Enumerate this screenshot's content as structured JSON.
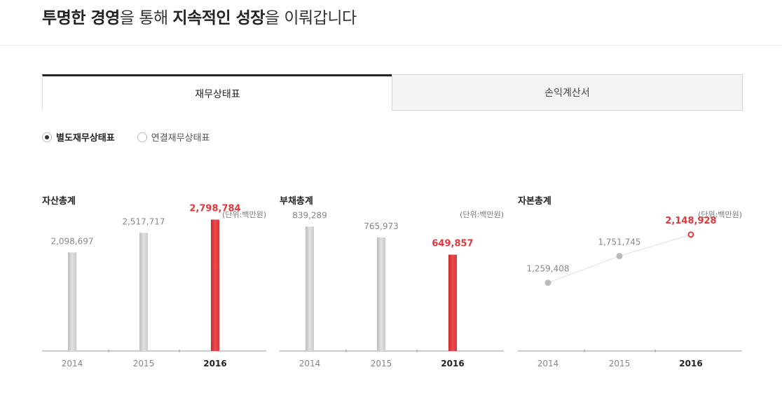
{
  "headline": {
    "part1_bold": "투명한 경영",
    "part2": "을 통해 ",
    "part3_bold": "지속적인 성장",
    "part4": "을 이뤄갑니다"
  },
  "tabs": [
    {
      "label": "재무상태표",
      "active": true
    },
    {
      "label": "손익계산서",
      "active": false
    }
  ],
  "radios": [
    {
      "label": "별도재무상태표",
      "selected": true
    },
    {
      "label": "연결재무상태표",
      "selected": false
    }
  ],
  "colors": {
    "highlight": "#e0383b",
    "base": "#cfcfcf",
    "axis": "#999999"
  },
  "panels": [
    {
      "title": "자산총계",
      "unit": "(단위:백만원)"
    },
    {
      "title": "부채총계",
      "unit": "(단위:백만원)"
    },
    {
      "title": "자본총계",
      "unit": "(단위:백만원)"
    }
  ],
  "chart_data": [
    {
      "type": "bar",
      "title": "자산총계",
      "unit": "(단위:백만원)",
      "categories": [
        "2014",
        "2015",
        "2016"
      ],
      "values": [
        2098697,
        2517717,
        2798784
      ],
      "value_labels": [
        "2,098,697",
        "2,517,717",
        "2,798,784"
      ],
      "highlight_index": 2,
      "ylim": [
        0,
        3000000
      ]
    },
    {
      "type": "bar",
      "title": "부채총계",
      "unit": "(단위:백만원)",
      "categories": [
        "2014",
        "2015",
        "2016"
      ],
      "values": [
        839289,
        765973,
        649857
      ],
      "value_labels": [
        "839,289",
        "765,973",
        "649,857"
      ],
      "highlight_index": 2,
      "ylim": [
        0,
        950000
      ]
    },
    {
      "type": "line",
      "title": "자본총계",
      "unit": "(단위:백만원)",
      "categories": [
        "2014",
        "2015",
        "2016"
      ],
      "values": [
        1259408,
        1751745,
        2148928
      ],
      "value_labels": [
        "1,259,408",
        "1,751,745",
        "2,148,928"
      ],
      "highlight_index": 2,
      "ylim": [
        0,
        2600000
      ]
    }
  ]
}
